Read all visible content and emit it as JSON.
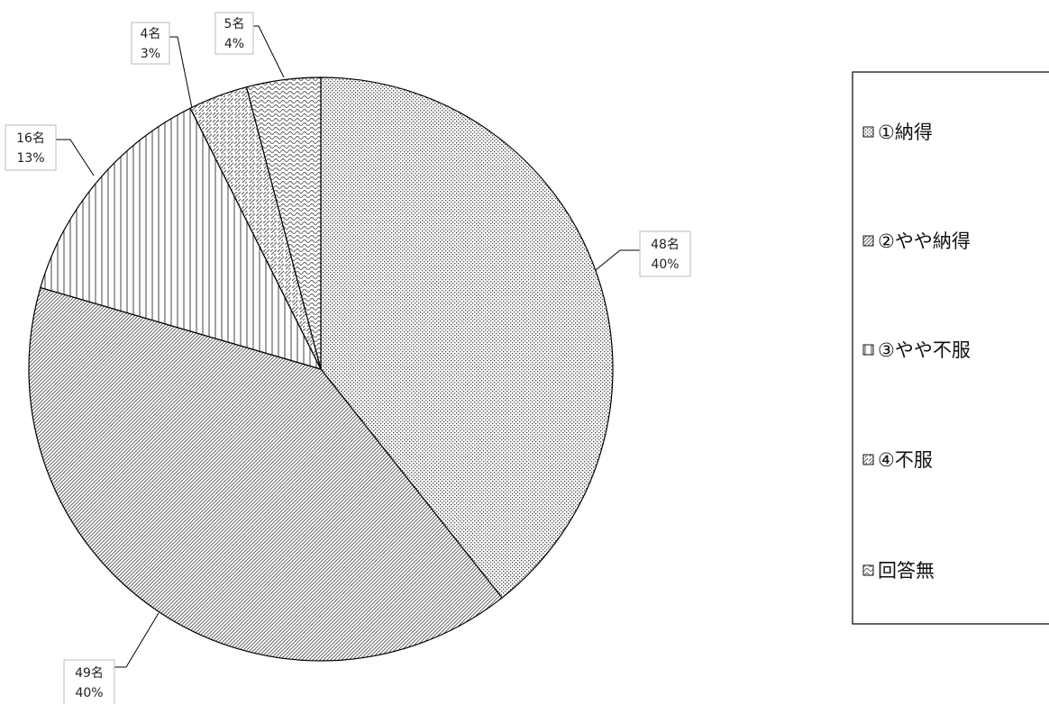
{
  "chart_data": {
    "type": "pie",
    "title": "",
    "slices": [
      {
        "name": "①納得",
        "value": 48,
        "count_label": "48名",
        "percent_label": "40%",
        "pattern": "dots"
      },
      {
        "name": "②やや納得",
        "value": 49,
        "count_label": "49名",
        "percent_label": "40%",
        "pattern": "diag-dense"
      },
      {
        "name": "③やや不服",
        "value": 16,
        "count_label": "16名",
        "percent_label": "13%",
        "pattern": "vertical"
      },
      {
        "name": "④不服",
        "value": 4,
        "count_label": "4名",
        "percent_label": "3%",
        "pattern": "diag-dashed"
      },
      {
        "name": "回答無",
        "value": 5,
        "count_label": "5名",
        "percent_label": "4%",
        "pattern": "waves"
      }
    ],
    "legend_position": "right",
    "colors": {
      "fill": "#ffffff",
      "stroke": "#000000",
      "pattern_ink": "#555555"
    }
  }
}
